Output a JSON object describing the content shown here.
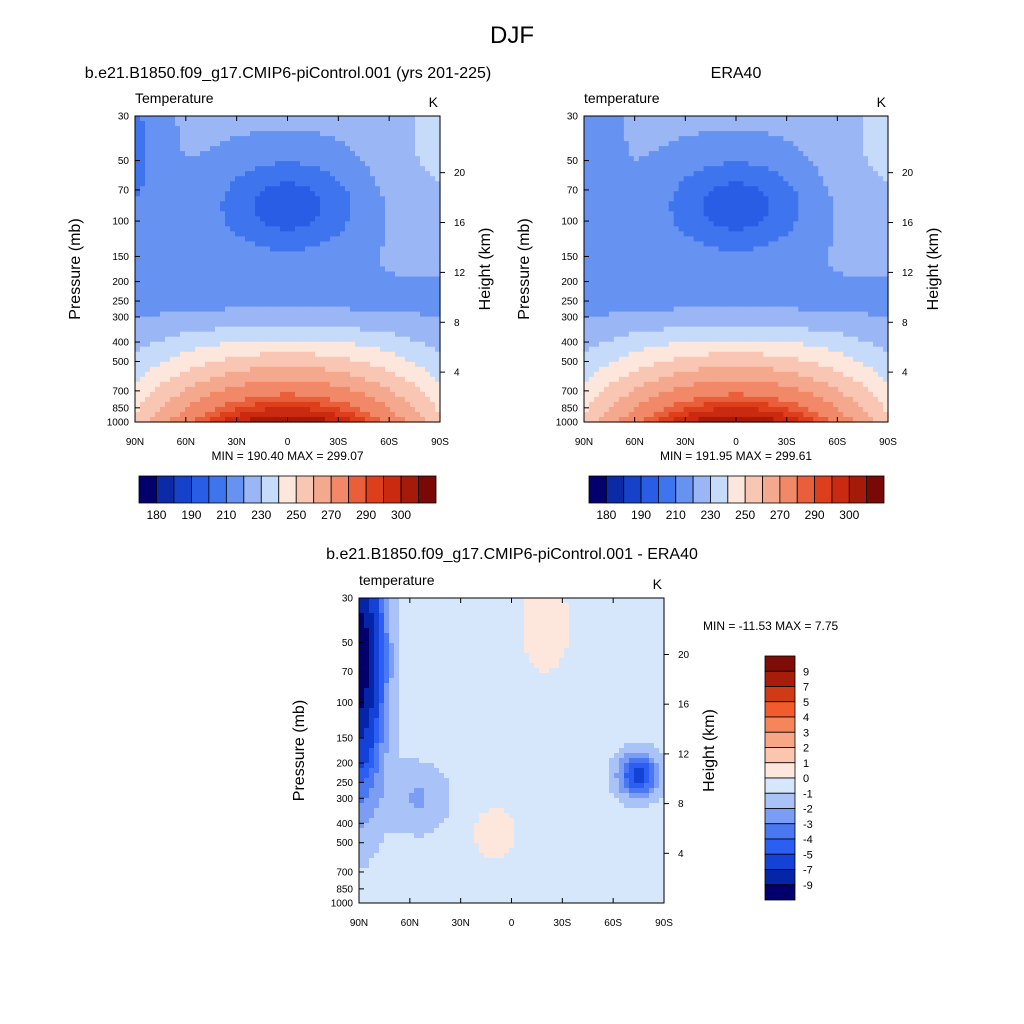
{
  "page_title": "DJF",
  "colors": {
    "abs_scale": [
      "#03006d",
      "#0c2aa5",
      "#1542c9",
      "#2a5de6",
      "#3e74ee",
      "#6693f2",
      "#9ab6f5",
      "#c6dbfa",
      "#fde6dc",
      "#f8c6b2",
      "#f4a88e",
      "#f18867",
      "#ea5f3b",
      "#dd3f1c",
      "#c92a10",
      "#a61a0a",
      "#7a0806"
    ],
    "diff_scale": [
      "#03006d",
      "#0525a8",
      "#1542d6",
      "#2b5ef2",
      "#4a78f2",
      "#7b9ef4",
      "#a9c2f7",
      "#d6e6fb",
      "#fde6dc",
      "#fbc6ad",
      "#f8a786",
      "#f5855a",
      "#f25b2c",
      "#cf3a17",
      "#a61d0c",
      "#7d0d06"
    ]
  },
  "chart_data": [
    {
      "type": "heatmap",
      "title": "b.e21.B1850.f09_g17.CMIP6-piControl.001 (yrs 201-225)",
      "subtitle_left": "Temperature",
      "subtitle_right": "K",
      "xlabel": "",
      "ylabel": "Pressure (mb)",
      "ylabel_right": "Height (km)",
      "x_ticks": [
        "90N",
        "60N",
        "30N",
        "0",
        "30S",
        "60S",
        "90S"
      ],
      "x_values": [
        90,
        60,
        30,
        0,
        -30,
        -60,
        -90
      ],
      "y_ticks": [
        "30",
        "50",
        "70",
        "100",
        "150",
        "200",
        "250",
        "300",
        "400",
        "500",
        "700",
        "850",
        "1000"
      ],
      "y_values": [
        30,
        50,
        70,
        100,
        150,
        200,
        250,
        300,
        400,
        500,
        700,
        850,
        1000
      ],
      "y_log_scale": true,
      "height_ticks": [
        "20",
        "16",
        "12",
        "8",
        "4"
      ],
      "height_values": [
        20,
        16,
        12,
        8,
        4
      ],
      "stats": "MIN = 190.40  MAX = 299.07",
      "colorbar_labels": [
        "180",
        "190",
        "210",
        "230",
        "250",
        "270",
        "290",
        "300"
      ],
      "field": "model"
    },
    {
      "type": "heatmap",
      "title": "ERA40",
      "subtitle_left": "temperature",
      "subtitle_right": "K",
      "xlabel": "",
      "ylabel": "Pressure (mb)",
      "ylabel_right": "Height (km)",
      "x_ticks": [
        "90N",
        "60N",
        "30N",
        "0",
        "30S",
        "60S",
        "90S"
      ],
      "x_values": [
        90,
        60,
        30,
        0,
        -30,
        -60,
        -90
      ],
      "y_ticks": [
        "30",
        "50",
        "70",
        "100",
        "150",
        "200",
        "250",
        "300",
        "400",
        "500",
        "700",
        "850",
        "1000"
      ],
      "y_values": [
        30,
        50,
        70,
        100,
        150,
        200,
        250,
        300,
        400,
        500,
        700,
        850,
        1000
      ],
      "y_log_scale": true,
      "height_ticks": [
        "20",
        "16",
        "12",
        "8",
        "4"
      ],
      "height_values": [
        20,
        16,
        12,
        8,
        4
      ],
      "stats": "MIN = 191.95  MAX = 299.61",
      "colorbar_labels": [
        "180",
        "190",
        "210",
        "230",
        "250",
        "270",
        "290",
        "300"
      ],
      "field": "obs"
    },
    {
      "type": "heatmap",
      "title": "b.e21.B1850.f09_g17.CMIP6-piControl.001 - ERA40",
      "subtitle_left": "temperature",
      "subtitle_right": "K",
      "xlabel": "",
      "ylabel": "Pressure (mb)",
      "ylabel_right": "Height (km)",
      "x_ticks": [
        "90N",
        "60N",
        "30N",
        "0",
        "30S",
        "60S",
        "90S"
      ],
      "x_values": [
        90,
        60,
        30,
        0,
        -30,
        -60,
        -90
      ],
      "y_ticks": [
        "30",
        "50",
        "70",
        "100",
        "150",
        "200",
        "250",
        "300",
        "400",
        "500",
        "700",
        "850",
        "1000"
      ],
      "y_values": [
        30,
        50,
        70,
        100,
        150,
        200,
        250,
        300,
        400,
        500,
        700,
        850,
        1000
      ],
      "y_log_scale": true,
      "height_ticks": [
        "20",
        "16",
        "12",
        "8",
        "4"
      ],
      "height_values": [
        20,
        16,
        12,
        8,
        4
      ],
      "stats": "MIN = -11.53  MAX =   7.75",
      "colorbar_labels": [
        "9",
        "7",
        "5",
        "4",
        "3",
        "2",
        "1",
        "0",
        "-1",
        "-2",
        "-3",
        "-4",
        "-5",
        "-7",
        "-9"
      ],
      "field": "diff"
    }
  ]
}
